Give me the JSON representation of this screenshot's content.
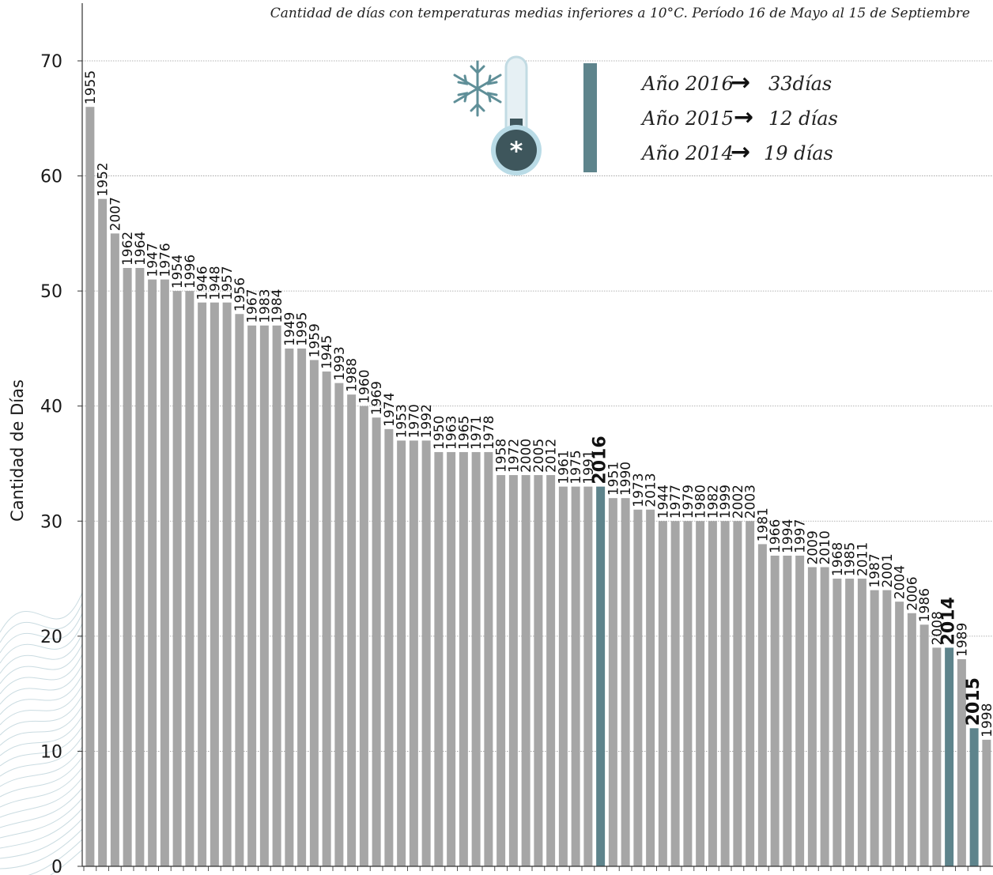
{
  "chart_data": {
    "type": "bar",
    "title": "Cantidad de días con temperaturas  medias inferiores a 10°C. Período 16 de Mayo al 15 de Septiembre",
    "xlabel": "",
    "ylabel": "Cantidad de Días",
    "ylim": [
      0,
      70
    ],
    "yticks": [
      0,
      10,
      20,
      30,
      40,
      50,
      60,
      70
    ],
    "grid": true,
    "highlight_color": "#5e848c",
    "bar_color": "#a6a6a6",
    "highlight_categories": [
      "2016",
      "2014",
      "2015"
    ],
    "categories": [
      "1955",
      "1952",
      "2007",
      "1962",
      "1964",
      "1947",
      "1976",
      "1954",
      "1996",
      "1946",
      "1948",
      "1957",
      "1956",
      "1967",
      "1983",
      "1984",
      "1949",
      "1995",
      "1959",
      "1945",
      "1993",
      "1988",
      "1960",
      "1969",
      "1974",
      "1953",
      "1970",
      "1992",
      "1950",
      "1963",
      "1965",
      "1971",
      "1978",
      "1958",
      "1972",
      "2000",
      "2005",
      "2012",
      "1961",
      "1975",
      "1991",
      "2016",
      "1951",
      "1990",
      "1973",
      "2013",
      "1944",
      "1977",
      "1979",
      "1980",
      "1982",
      "1999",
      "2002",
      "2003",
      "1981",
      "1966",
      "1994",
      "1997",
      "2009",
      "2010",
      "1968",
      "1985",
      "2011",
      "1987",
      "2001",
      "2004",
      "2006",
      "1986",
      "2008",
      "2014",
      "1989",
      "2015",
      "1998"
    ],
    "values": [
      66,
      58,
      55,
      52,
      52,
      51,
      51,
      50,
      50,
      49,
      49,
      49,
      48,
      47,
      47,
      47,
      45,
      45,
      44,
      43,
      42,
      41,
      40,
      39,
      38,
      37,
      37,
      37,
      36,
      36,
      36,
      36,
      36,
      34,
      34,
      34,
      34,
      34,
      33,
      33,
      33,
      33,
      32,
      32,
      31,
      31,
      30,
      30,
      30,
      30,
      30,
      30,
      30,
      30,
      28,
      27,
      27,
      27,
      26,
      26,
      25,
      25,
      25,
      24,
      24,
      23,
      22,
      21,
      19,
      19,
      18,
      12,
      11
    ]
  },
  "info_box": {
    "lines": [
      {
        "year": "Año 2016",
        "value": "33días"
      },
      {
        "year": "Año 2015",
        "value": "12 días"
      },
      {
        "year": "Año  2014",
        "value": "19 días"
      }
    ],
    "icon": "snowflake-thermometer-icon"
  }
}
